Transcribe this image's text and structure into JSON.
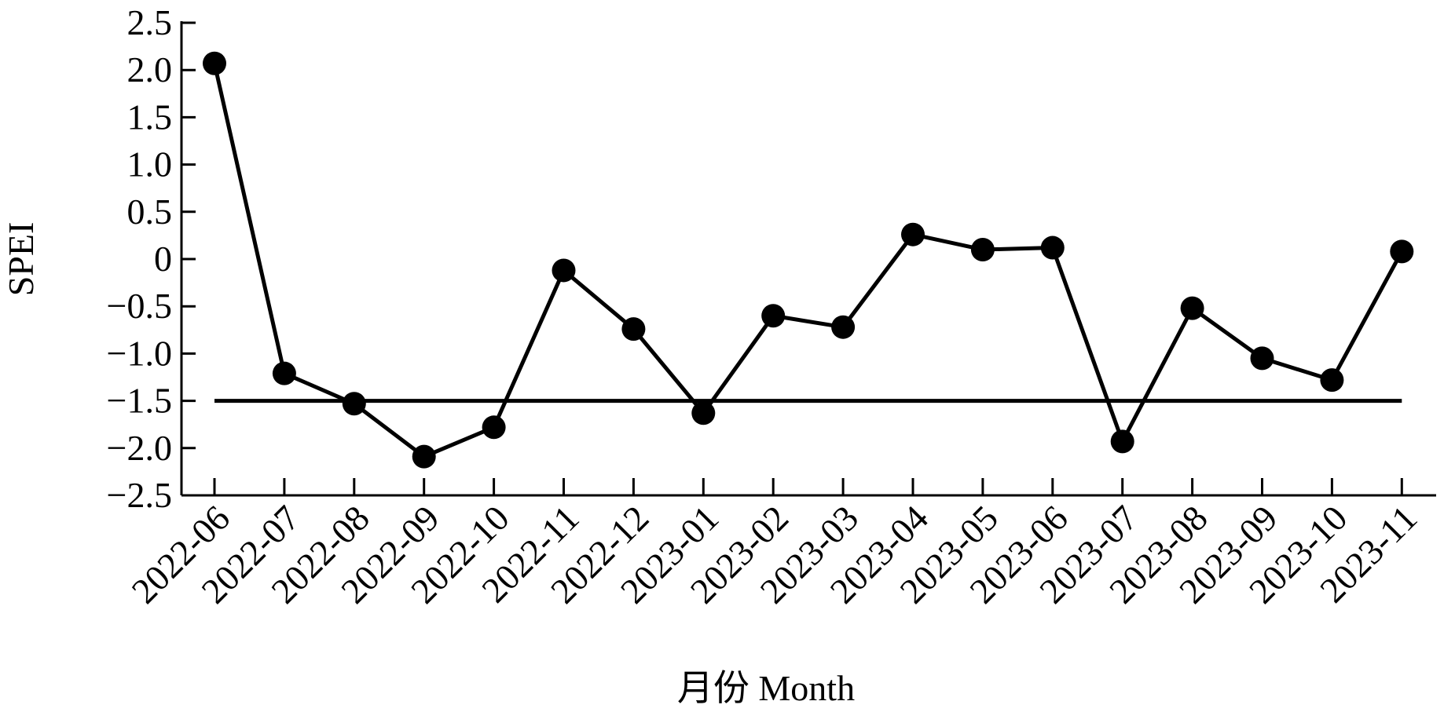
{
  "chart_data": {
    "type": "line",
    "y_label": "SPEI",
    "x_label": "月份 Month",
    "categories": [
      "2022-06",
      "2022-07",
      "2022-08",
      "2022-09",
      "2022-10",
      "2022-11",
      "2022-12",
      "2023-01",
      "2023-02",
      "2023-03",
      "2023-04",
      "2023-05",
      "2023-06",
      "2023-07",
      "2023-08",
      "2023-09",
      "2023-10",
      "2023-11"
    ],
    "values": [
      2.07,
      -1.21,
      -1.53,
      -2.09,
      -1.78,
      -0.12,
      -0.74,
      -1.63,
      -0.6,
      -0.72,
      0.26,
      0.1,
      0.12,
      -1.93,
      -0.52,
      -1.05,
      -1.28,
      0.08
    ],
    "color": "#000000",
    "reference_line": -1.5,
    "ylim": [
      -2.5,
      2.5
    ],
    "yticks": [
      2.5,
      {
        "value": 2,
        "label": "2.0"
      },
      1.5,
      {
        "value": 1,
        "label": "1.0"
      },
      0.5,
      0,
      {
        "value": -0.5,
        "label": "−0.5"
      },
      {
        "value": -1,
        "label": "−1.0"
      },
      {
        "value": -1.5,
        "label": "−1.5"
      },
      {
        "value": -2,
        "label": "−2.0"
      },
      {
        "value": -2.5,
        "label": "−2.5"
      }
    ]
  }
}
